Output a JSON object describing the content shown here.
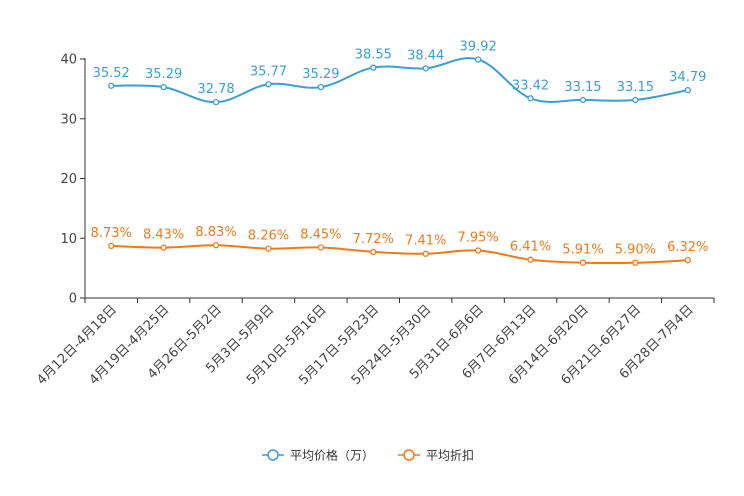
{
  "chart_data": {
    "type": "line",
    "title": "",
    "xlabel": "",
    "ylabel": "",
    "ylim": [
      0,
      40
    ],
    "yticks": [
      0,
      10,
      20,
      30,
      40
    ],
    "grid": false,
    "legend_position": "bottom-center",
    "categories": [
      "4月12日-4月18日",
      "4月19日-4月25日",
      "4月26日-5月2日",
      "5月3日-5月9日",
      "5月10日-5月16日",
      "5月17日-5月23日",
      "5月24日-5月30日",
      "5月31日-6月6日",
      "6月7日-6月13日",
      "6月14日-6月20日",
      "6月21日-6月27日",
      "6月28日-7月4日"
    ],
    "series": [
      {
        "name": "平均价格（万）",
        "color": "#3d9fd1",
        "values": [
          35.52,
          35.29,
          32.78,
          35.77,
          35.29,
          38.55,
          38.44,
          39.92,
          33.42,
          33.15,
          33.15,
          34.79
        ],
        "labels": [
          "35.52",
          "35.29",
          "32.78",
          "35.77",
          "35.29",
          "38.55",
          "38.44",
          "39.92",
          "33.42",
          "33.15",
          "33.15",
          "34.79"
        ]
      },
      {
        "name": "平均折扣",
        "color": "#f07a1a",
        "values": [
          8.73,
          8.43,
          8.83,
          8.26,
          8.45,
          7.72,
          7.41,
          7.95,
          6.41,
          5.91,
          5.9,
          6.32
        ],
        "labels": [
          "8.73%",
          "8.43%",
          "8.83%",
          "8.26%",
          "8.45%",
          "7.72%",
          "7.41%",
          "7.95%",
          "6.41%",
          "5.91%",
          "5.90%",
          "6.32%"
        ]
      }
    ]
  }
}
